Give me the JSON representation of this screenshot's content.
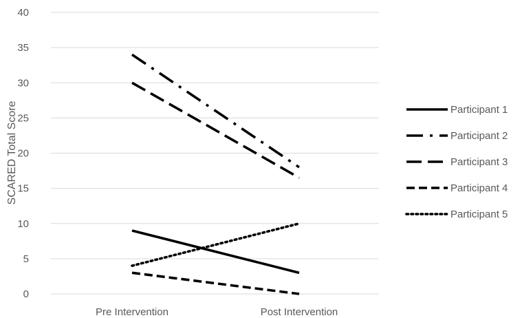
{
  "chart_data": {
    "type": "line",
    "categories": [
      "Pre Intervention",
      "Post Intervention"
    ],
    "ylabel": "SCARED Total Score",
    "xlabel": "",
    "title": "",
    "ylim": [
      0,
      40
    ],
    "ytick_step": 5,
    "grid": true,
    "legend_position": "right",
    "series": [
      {
        "name": "Participant 1",
        "values": [
          9,
          3
        ],
        "line_style": "solid",
        "color": "#000000"
      },
      {
        "name": "Participant 2",
        "values": [
          34,
          18
        ],
        "line_style": "long-dash-dot",
        "color": "#000000"
      },
      {
        "name": "Participant 3",
        "values": [
          30,
          16.5
        ],
        "line_style": "long-dash",
        "color": "#000000"
      },
      {
        "name": "Participant 4",
        "values": [
          3,
          0
        ],
        "line_style": "dash",
        "color": "#000000"
      },
      {
        "name": "Participant 5",
        "values": [
          4,
          10
        ],
        "line_style": "dot",
        "color": "#000000"
      }
    ],
    "gridline_color": "#d9d9d9"
  }
}
